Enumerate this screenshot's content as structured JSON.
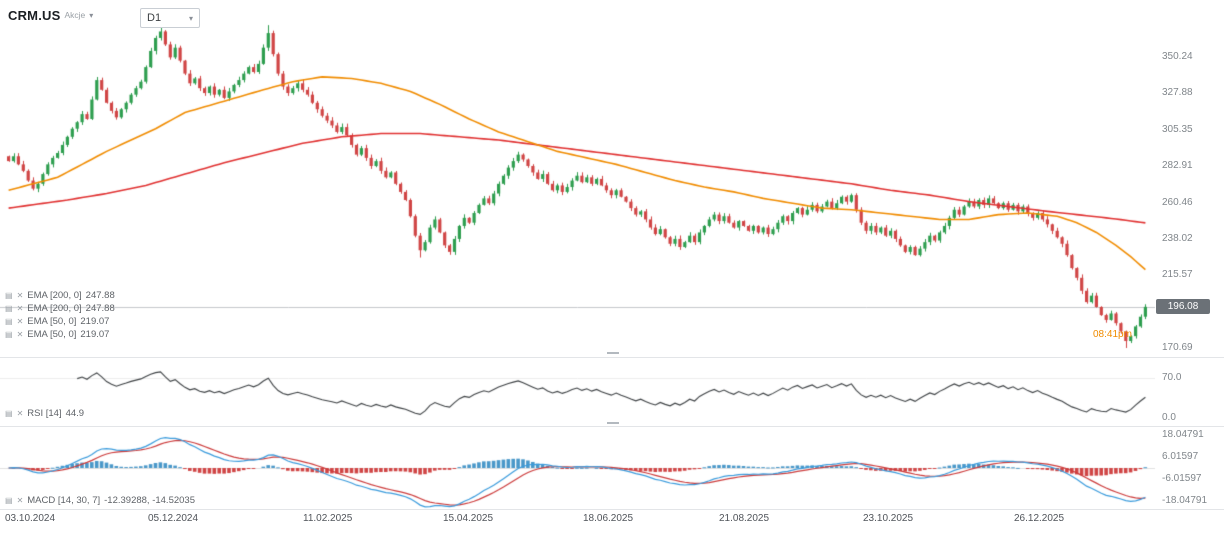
{
  "header": {
    "symbol": "CRM.US",
    "instrument_type": "Akcje",
    "timeframe": "D1"
  },
  "price_axis": {
    "ticks": [
      "350.24",
      "327.88",
      "305.35",
      "282.91",
      "260.46",
      "238.02",
      "215.57",
      "170.69"
    ],
    "current_price": "196.08"
  },
  "time_axis": {
    "dates": [
      "03.10.2024",
      "05.12.2024",
      "11.02.2025",
      "15.04.2025",
      "18.06.2025",
      "21.08.2025",
      "23.10.2025",
      "26.12.2025"
    ]
  },
  "indicators": {
    "overlays": [
      {
        "label": "EMA [200, 0]",
        "value": "247.88"
      },
      {
        "label": "EMA [200, 0]",
        "value": "247.88"
      },
      {
        "label": "EMA [50, 0]",
        "value": "219.07"
      },
      {
        "label": "EMA [50, 0]",
        "value": "219.07"
      }
    ],
    "rsi": {
      "label": "RSI [14]",
      "value": "44.9",
      "ticks": [
        "70.0",
        "0.0"
      ]
    },
    "macd": {
      "label": "MACD [14, 30, 7]",
      "value": "-12.39288, -14.52035",
      "ticks": [
        "18.04791",
        "6.01597",
        "-6.01597",
        "-18.04791"
      ]
    }
  },
  "annotations": {
    "countdown": "08:41pm"
  },
  "colors": {
    "candle_up": "#2e9e4f",
    "candle_down": "#d04545",
    "ema50": "#f08c00",
    "ema200": "#e03131",
    "rsi_line": "#3c4043",
    "macd_line": "#3a9bdc",
    "macd_signal": "#cc3b3b",
    "macd_hist_up": "#4a98c9",
    "macd_hist_down": "#d04545",
    "price_tag_bg": "#6b7177"
  },
  "chart_data": {
    "type": "candlestick",
    "symbol": "CRM.US",
    "timeframe": "D1",
    "title": "CRM.US Akcje D1",
    "x_axis_dates": [
      "03.10.2024",
      "05.12.2024",
      "11.02.2025",
      "15.04.2025",
      "18.06.2025",
      "21.08.2025",
      "23.10.2025",
      "26.12.2025"
    ],
    "price_axis_ticks": [
      350.24,
      327.88,
      305.35,
      282.91,
      260.46,
      238.02,
      215.57,
      170.69
    ],
    "current_price": 196.08,
    "ylim": [
      163,
      385
    ],
    "closes": [
      286,
      289,
      284,
      280,
      274,
      269,
      272,
      278,
      284,
      288,
      291,
      296,
      301,
      306,
      310,
      315,
      312,
      324,
      336,
      330,
      322,
      317,
      313,
      318,
      322,
      327,
      331,
      335,
      344,
      354,
      362,
      366,
      358,
      350,
      356,
      348,
      340,
      334,
      337,
      331,
      328,
      332,
      327,
      330,
      325,
      329,
      333,
      336,
      340,
      344,
      341,
      346,
      356,
      365,
      352,
      340,
      332,
      328,
      331,
      334,
      330,
      327,
      322,
      318,
      314,
      311,
      308,
      304,
      307,
      302,
      296,
      290,
      294,
      288,
      283,
      286,
      280,
      276,
      279,
      272,
      267,
      262,
      252,
      240,
      231,
      236,
      245,
      250,
      242,
      234,
      230,
      238,
      246,
      251,
      248,
      254,
      259,
      263,
      260,
      266,
      272,
      277,
      282,
      286,
      290,
      287,
      283,
      279,
      275,
      278,
      272,
      268,
      271,
      267,
      270,
      274,
      277,
      273,
      276,
      272,
      275,
      271,
      268,
      265,
      268,
      264,
      261,
      257,
      253,
      255,
      250,
      245,
      241,
      244,
      239,
      235,
      238,
      233,
      236,
      240,
      236,
      242,
      246,
      250,
      253,
      249,
      252,
      248,
      245,
      249,
      246,
      243,
      246,
      242,
      245,
      241,
      244,
      248,
      252,
      249,
      254,
      257,
      253,
      256,
      259,
      255,
      258,
      261,
      257,
      260,
      264,
      261,
      265,
      256,
      248,
      243,
      246,
      242,
      245,
      240,
      243,
      238,
      234,
      230,
      233,
      228,
      232,
      236,
      240,
      237,
      242,
      246,
      251,
      256,
      253,
      258,
      261,
      258,
      262,
      259,
      263,
      260,
      257,
      260,
      256,
      259,
      255,
      258,
      254,
      251,
      254,
      250,
      247,
      243,
      239,
      235,
      228,
      220,
      214,
      206,
      199,
      203,
      196,
      191,
      188,
      192,
      186,
      181,
      175,
      178,
      184,
      190,
      196.08
    ],
    "wick_highs": {
      "31": 369.5,
      "53": 369.9
    },
    "wick_lows": {
      "84": 226.5,
      "228": 170.69
    },
    "ema50": {
      "period": 50,
      "color": "#f08c00",
      "last": 219.07,
      "points": [
        [
          0,
          268
        ],
        [
          10,
          276
        ],
        [
          20,
          292
        ],
        [
          30,
          306
        ],
        [
          36,
          316
        ],
        [
          44,
          323
        ],
        [
          52,
          330
        ],
        [
          58,
          335
        ],
        [
          64,
          338
        ],
        [
          70,
          337
        ],
        [
          76,
          334
        ],
        [
          82,
          329
        ],
        [
          88,
          321
        ],
        [
          94,
          312
        ],
        [
          100,
          304
        ],
        [
          106,
          298
        ],
        [
          112,
          292
        ],
        [
          118,
          288
        ],
        [
          124,
          284
        ],
        [
          130,
          279
        ],
        [
          136,
          274
        ],
        [
          142,
          270
        ],
        [
          148,
          267
        ],
        [
          154,
          263
        ],
        [
          160,
          260
        ],
        [
          166,
          257
        ],
        [
          172,
          256
        ],
        [
          178,
          254
        ],
        [
          184,
          252
        ],
        [
          190,
          250
        ],
        [
          196,
          250
        ],
        [
          202,
          253
        ],
        [
          208,
          254
        ],
        [
          214,
          252
        ],
        [
          218,
          248
        ],
        [
          222,
          242
        ],
        [
          226,
          234
        ],
        [
          229,
          227
        ],
        [
          232,
          219.07
        ]
      ]
    },
    "ema200": {
      "period": 200,
      "color": "#e03131",
      "last": 247.88,
      "points": [
        [
          0,
          257
        ],
        [
          12,
          262
        ],
        [
          20,
          266
        ],
        [
          28,
          271
        ],
        [
          36,
          278
        ],
        [
          44,
          285
        ],
        [
          52,
          291
        ],
        [
          60,
          297
        ],
        [
          68,
          301
        ],
        [
          76,
          303
        ],
        [
          84,
          303
        ],
        [
          92,
          301
        ],
        [
          100,
          299
        ],
        [
          108,
          296
        ],
        [
          116,
          293
        ],
        [
          124,
          290
        ],
        [
          132,
          287
        ],
        [
          140,
          284
        ],
        [
          148,
          281
        ],
        [
          156,
          278
        ],
        [
          164,
          275
        ],
        [
          172,
          272
        ],
        [
          180,
          268
        ],
        [
          188,
          265
        ],
        [
          196,
          261
        ],
        [
          204,
          258
        ],
        [
          212,
          255
        ],
        [
          218,
          253
        ],
        [
          224,
          251
        ],
        [
          228,
          249.5
        ],
        [
          232,
          247.88
        ]
      ]
    },
    "rsi_period": 14,
    "rsi_last": 44.9,
    "macd_params": [
      14,
      30,
      7
    ],
    "macd_last": [
      -12.39288,
      -14.52035
    ]
  }
}
